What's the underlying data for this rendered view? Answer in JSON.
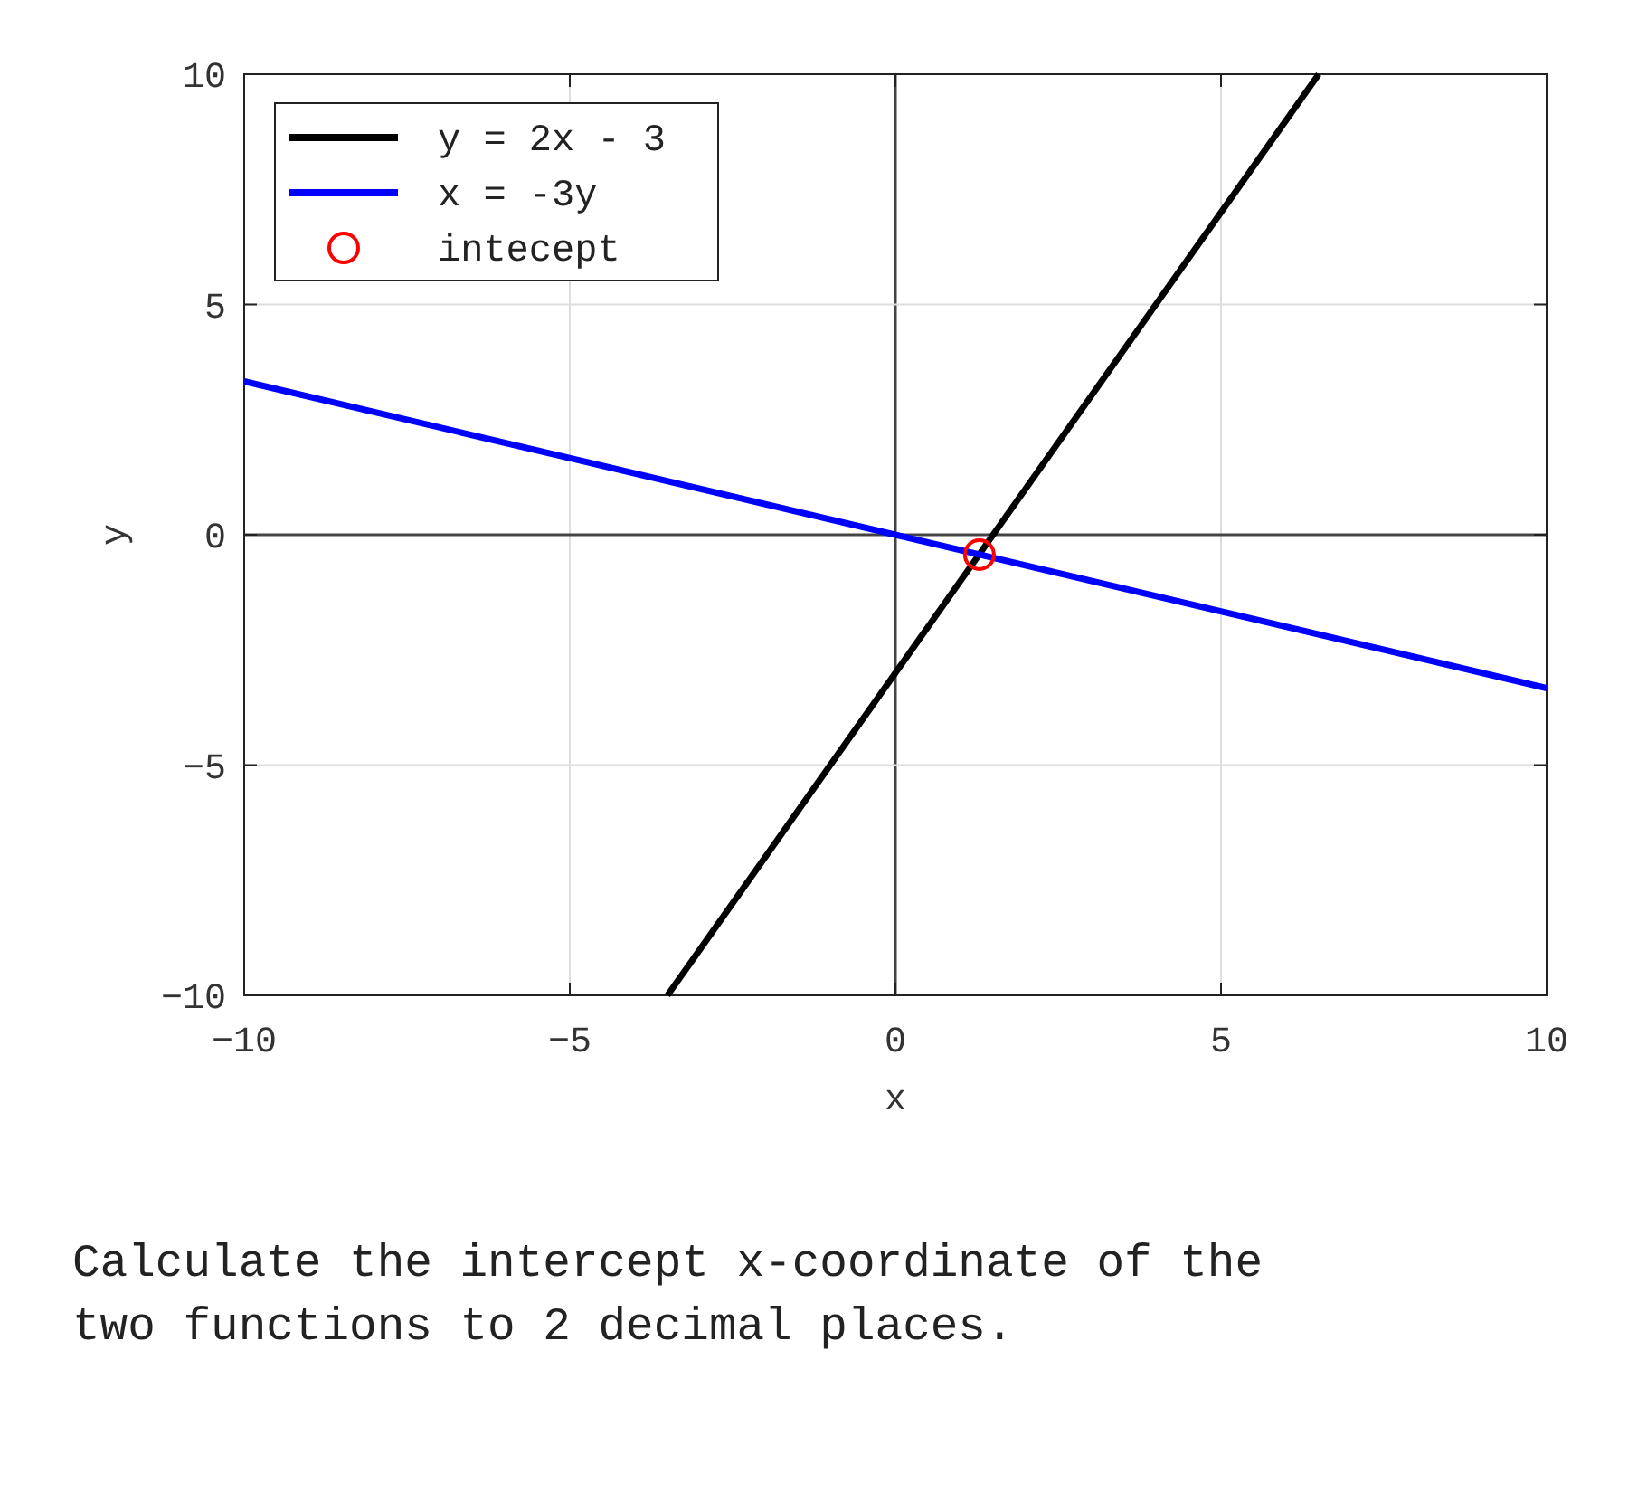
{
  "chart_data": {
    "type": "line",
    "xlabel": "x",
    "ylabel": "y",
    "xlim": [
      -10,
      10
    ],
    "ylim": [
      -10,
      10
    ],
    "xticks": [
      -10,
      -5,
      0,
      5,
      10
    ],
    "yticks": [
      -10,
      -5,
      0,
      5,
      10
    ],
    "grid": true,
    "legend": "top left",
    "line_style": "solid",
    "series": [
      {
        "name": "y = 2x - 3",
        "color": "#000000",
        "x": [
          -3.5,
          6.5
        ],
        "values": [
          -10,
          10
        ]
      },
      {
        "name": "x = -3y",
        "color": "#0000ff",
        "x": [
          -10,
          10
        ],
        "values": [
          3.33,
          -3.33
        ]
      },
      {
        "name": "intecept",
        "type": "scatter",
        "marker": "circle",
        "color": "#ff0000",
        "x": [
          1.29
        ],
        "values": [
          -0.43
        ]
      }
    ],
    "annotations": [
      "Calculate the intercept x-coordinate of the two functions to 2 decimal places."
    ]
  }
}
